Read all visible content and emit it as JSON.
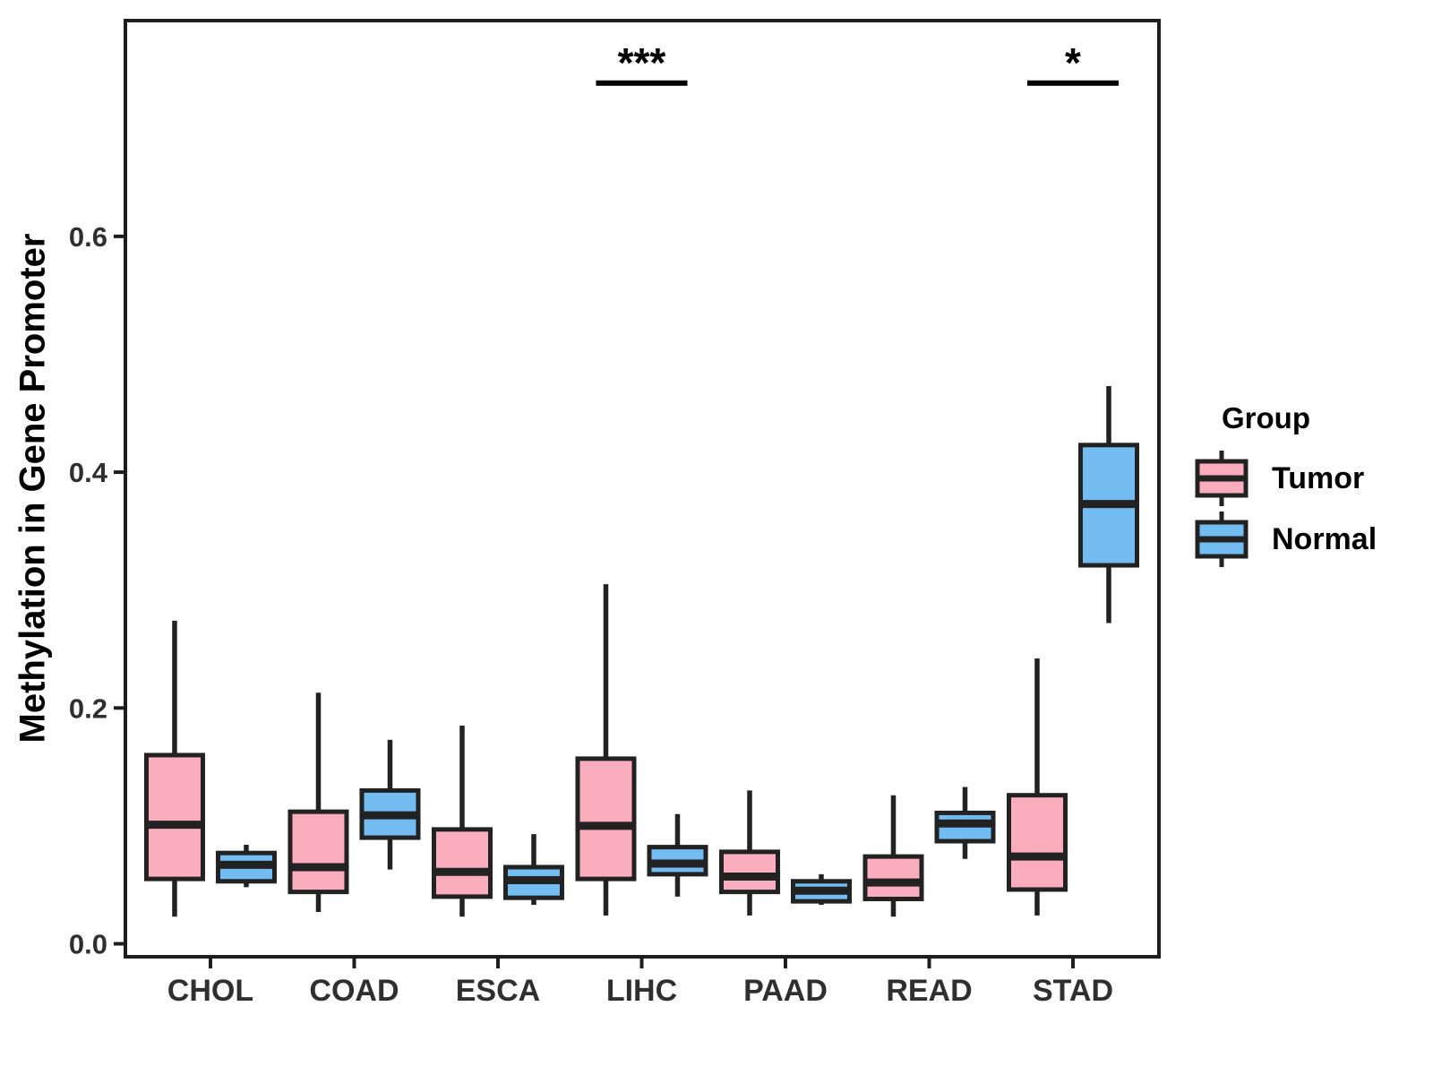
{
  "chart_data": {
    "type": "boxplot",
    "title": "",
    "xlabel": "",
    "ylabel": "Methylation in Gene Promoter",
    "categories": [
      "CHOL",
      "COAD",
      "ESCA",
      "LIHC",
      "PAAD",
      "READ",
      "STAD"
    ],
    "y_ticks": [
      0.0,
      0.2,
      0.4,
      0.6
    ],
    "ylim": [
      -0.011,
      0.783
    ],
    "grid": false,
    "legend_position": "right",
    "series": [
      {
        "name": "Tumor",
        "fill": "#FAADBD",
        "boxes": [
          {
            "category": "CHOL",
            "whisker_low": 0.023,
            "q1": 0.055,
            "median": 0.101,
            "q3": 0.16,
            "whisker_high": 0.274
          },
          {
            "category": "COAD",
            "whisker_low": 0.027,
            "q1": 0.044,
            "median": 0.065,
            "q3": 0.112,
            "whisker_high": 0.213
          },
          {
            "category": "ESCA",
            "whisker_low": 0.023,
            "q1": 0.04,
            "median": 0.061,
            "q3": 0.097,
            "whisker_high": 0.185
          },
          {
            "category": "LIHC",
            "whisker_low": 0.024,
            "q1": 0.055,
            "median": 0.1,
            "q3": 0.157,
            "whisker_high": 0.305
          },
          {
            "category": "PAAD",
            "whisker_low": 0.024,
            "q1": 0.044,
            "median": 0.057,
            "q3": 0.078,
            "whisker_high": 0.13
          },
          {
            "category": "READ",
            "whisker_low": 0.023,
            "q1": 0.038,
            "median": 0.052,
            "q3": 0.074,
            "whisker_high": 0.126
          },
          {
            "category": "STAD",
            "whisker_low": 0.024,
            "q1": 0.046,
            "median": 0.074,
            "q3": 0.126,
            "whisker_high": 0.242
          }
        ]
      },
      {
        "name": "Normal",
        "fill": "#72BCF2",
        "boxes": [
          {
            "category": "CHOL",
            "whisker_low": 0.048,
            "q1": 0.053,
            "median": 0.067,
            "q3": 0.077,
            "whisker_high": 0.084
          },
          {
            "category": "COAD",
            "whisker_low": 0.063,
            "q1": 0.09,
            "median": 0.109,
            "q3": 0.13,
            "whisker_high": 0.173
          },
          {
            "category": "ESCA",
            "whisker_low": 0.033,
            "q1": 0.039,
            "median": 0.054,
            "q3": 0.065,
            "whisker_high": 0.093
          },
          {
            "category": "LIHC",
            "whisker_low": 0.04,
            "q1": 0.059,
            "median": 0.068,
            "q3": 0.082,
            "whisker_high": 0.11
          },
          {
            "category": "PAAD",
            "whisker_low": 0.033,
            "q1": 0.036,
            "median": 0.045,
            "q3": 0.053,
            "whisker_high": 0.059
          },
          {
            "category": "READ",
            "whisker_low": 0.072,
            "q1": 0.087,
            "median": 0.102,
            "q3": 0.111,
            "whisker_high": 0.133
          },
          {
            "category": "STAD",
            "whisker_low": 0.272,
            "q1": 0.321,
            "median": 0.373,
            "q3": 0.423,
            "whisker_high": 0.473
          }
        ]
      }
    ],
    "annotations": [
      {
        "category": "LIHC",
        "label": "***",
        "y": 0.73
      },
      {
        "category": "STAD",
        "label": "*",
        "y": 0.73
      }
    ],
    "colors": {
      "tumor_fill": "#FAADBD",
      "normal_fill": "#72BCF2",
      "stroke": "#222222",
      "axis_text": "#2F2F2F",
      "panel_border": "#1D1D1D"
    }
  },
  "legend": {
    "title": "Group",
    "entries": [
      {
        "label": "Tumor",
        "color": "#FAADBD"
      },
      {
        "label": "Normal",
        "color": "#72BCF2"
      }
    ]
  }
}
